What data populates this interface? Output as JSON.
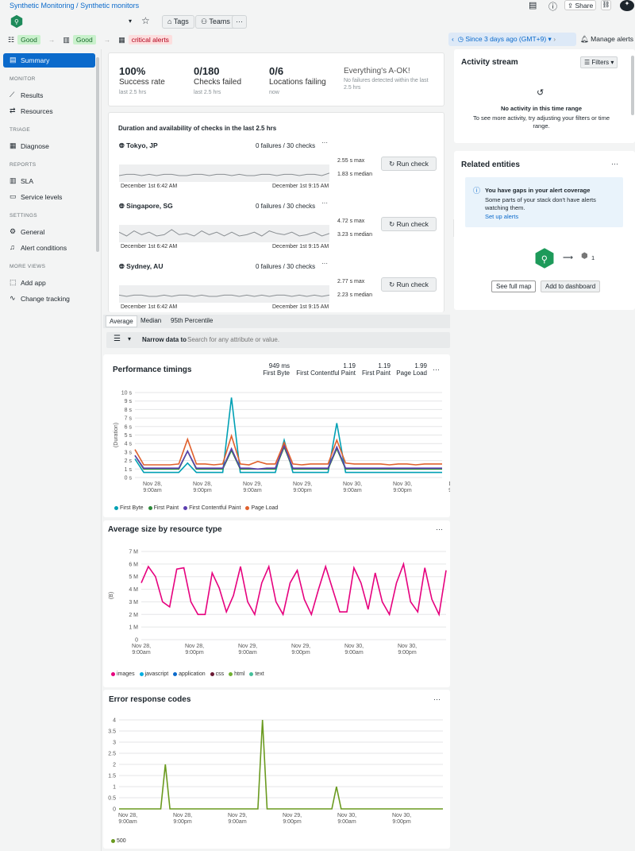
{
  "breadcrumb": {
    "parent": "Synthetic Monitoring",
    "sep": " / ",
    "current": "Synthetic monitors"
  },
  "header": {
    "tags_label": "Tags",
    "teams_label": "Teams",
    "more_label": "···",
    "share_label": "Share"
  },
  "status": {
    "s1": "Good",
    "s2": "Good",
    "s3": "critical alerts"
  },
  "timepicker": {
    "label": "Since 3 days ago (GMT+9)",
    "manage_label": "Manage alerts"
  },
  "sidebar": {
    "summary": "Summary",
    "h_monitor": "MONITOR",
    "results": "Results",
    "resources": "Resources",
    "h_triage": "TRIAGE",
    "diagnose": "Diagnose",
    "h_reports": "REPORTS",
    "sla": "SLA",
    "service_levels": "Service levels",
    "h_settings": "SETTINGS",
    "general": "General",
    "alert_conditions": "Alert conditions",
    "h_more": "MORE VIEWS",
    "add_app": "Add app",
    "change_tracking": "Change tracking"
  },
  "kpis": [
    {
      "value": "100%",
      "label": "Success rate",
      "sub": "last 2.5 hrs"
    },
    {
      "value": "0/180",
      "label": "Checks failed",
      "sub": "last 2.5 hrs"
    },
    {
      "value": "0/6",
      "label": "Locations failing",
      "sub": "now"
    },
    {
      "value": "",
      "label": "Everything's A-OK!",
      "sub": "No failures detected within the last 2.5 hrs"
    }
  ],
  "checks": {
    "title": "Duration and availability of checks in the last 2.5 hrs",
    "run_label": "Run check",
    "locations": [
      {
        "name": "Tokyo, JP",
        "failures": "0 failures / 30 checks",
        "max": "2.55 s max",
        "median": "1.83 s median",
        "from": "December 1st 6:42 AM",
        "to": "December 1st 9:15 AM"
      },
      {
        "name": "Singapore, SG",
        "failures": "0 failures / 30 checks",
        "max": "4.72 s max",
        "median": "3.23 s median",
        "from": "December 1st 6:42 AM",
        "to": "December 1st 9:15 AM"
      },
      {
        "name": "Sydney, AU",
        "failures": "0 failures / 30 checks",
        "max": "2.77 s max",
        "median": "2.23 s median",
        "from": "December 1st 6:42 AM",
        "to": "December 1st 9:15 AM"
      }
    ]
  },
  "tabs": [
    "Average",
    "Median",
    "95th Percentile"
  ],
  "filter": {
    "label": "Narrow data to",
    "placeholder": "Search for any attribute or value."
  },
  "activity": {
    "title": "Activity stream",
    "filters": "Filters",
    "empty_title": "No activity in this time range",
    "empty_sub": "To see more activity, try adjusting your filters or time range."
  },
  "related": {
    "title": "Related entities",
    "gap_title": "You have gaps in your alert coverage",
    "gap_body": "Some parts of your stack don't have alerts watching them.",
    "gap_link": "Set up alerts",
    "count": "1",
    "full_map": "See full map",
    "add_dash": "Add to dashboard"
  },
  "perf": {
    "title": "Performance timings",
    "m1v": "949 ms",
    "m1l": "First Byte",
    "m2v": "1.19",
    "m2l": "First Contentful Paint",
    "m3v": "1.19",
    "m3l": "First Paint",
    "m4v": "1.99",
    "m4l": "Page Load"
  },
  "size": {
    "title": "Average size by resource type"
  },
  "errors": {
    "title": "Error response codes"
  },
  "colors": {
    "blue": "#0b6acb",
    "green": "#1ce783",
    "accent": "#1d8a3a"
  },
  "chart_data": [
    {
      "type": "line",
      "title": "Performance timings",
      "ylabel": "(Duration)",
      "ylim": [
        0,
        10
      ],
      "yticks": [
        "0 s",
        "1 s",
        "2 s",
        "3 s",
        "4 s",
        "5 s",
        "6 s",
        "7 s",
        "8 s",
        "9 s",
        "10 s"
      ],
      "xticks": [
        "Nov 28,\n9:00am",
        "Nov 28,\n9:00pm",
        "Nov 29,\n9:00am",
        "Nov 29,\n9:00pm",
        "Nov 30,\n9:00am",
        "Nov 30,\n9:00pm",
        "De\n9:0"
      ],
      "series": [
        {
          "name": "First Byte",
          "color": "#00a0b4",
          "values": [
            2.2,
            0.6,
            0.6,
            0.6,
            0.6,
            0.6,
            1.7,
            0.6,
            0.6,
            0.6,
            0.6,
            9.4,
            0.6,
            0.6,
            0.6,
            0.6,
            0.6,
            4.4,
            0.6,
            0.6,
            0.6,
            0.6,
            0.6,
            6.4,
            0.6,
            0.6,
            0.6,
            0.6,
            0.6,
            0.6,
            0.6,
            0.6,
            0.6,
            0.6,
            0.6,
            0.6
          ]
        },
        {
          "name": "First Paint",
          "color": "#2c8a3a",
          "values": [
            2.6,
            1.0,
            1.0,
            1.0,
            1.0,
            1.0,
            3.1,
            1.0,
            1.0,
            1.0,
            1.0,
            3.2,
            1.0,
            1.0,
            1.0,
            1.0,
            1.0,
            3.6,
            1.0,
            1.0,
            1.0,
            1.0,
            1.0,
            3.4,
            1.0,
            1.0,
            1.0,
            1.0,
            1.0,
            1.0,
            1.0,
            1.0,
            1.0,
            1.0,
            1.0,
            1.0
          ]
        },
        {
          "name": "First Contentful Paint",
          "color": "#5c3fb0",
          "values": [
            2.6,
            1.1,
            1.1,
            1.1,
            1.1,
            1.1,
            3.1,
            1.1,
            1.1,
            1.1,
            1.1,
            3.4,
            1.1,
            1.1,
            1.0,
            1.1,
            1.1,
            3.8,
            1.1,
            1.1,
            1.1,
            1.1,
            1.1,
            3.6,
            1.1,
            1.1,
            1.1,
            1.1,
            1.1,
            1.1,
            1.1,
            1.1,
            1.1,
            1.1,
            1.1,
            1.1
          ]
        },
        {
          "name": "Page Load",
          "color": "#e0602d",
          "values": [
            3.3,
            1.5,
            1.5,
            1.5,
            1.5,
            1.6,
            4.5,
            1.6,
            1.6,
            1.5,
            1.6,
            4.9,
            1.6,
            1.5,
            1.9,
            1.6,
            1.6,
            4.1,
            1.6,
            1.5,
            1.6,
            1.6,
            1.6,
            4.4,
            1.7,
            1.6,
            1.6,
            1.6,
            1.6,
            1.5,
            1.6,
            1.6,
            1.5,
            1.6,
            1.6,
            1.6
          ]
        }
      ]
    },
    {
      "type": "area",
      "title": "Average size by resource type",
      "ylabel": "(B)",
      "ylim": [
        0,
        7
      ],
      "yticks": [
        "0",
        "1 M",
        "2 M",
        "3 M",
        "4 M",
        "5 M",
        "6 M",
        "7 M"
      ],
      "xticks": [
        "Nov 28,\n9:00am",
        "Nov 28,\n9:00pm",
        "Nov 29,\n9:00am",
        "Nov 29,\n9:00pm",
        "Nov 30,\n9:00am",
        "Nov 30,\n9:00pm"
      ],
      "series": [
        {
          "name": "images",
          "color": "#e6007e",
          "values": [
            4.5,
            5.8,
            5.0,
            3.0,
            2.6,
            5.6,
            5.7,
            3.0,
            2.0,
            2.0,
            5.3,
            4.1,
            2.2,
            3.5,
            5.8,
            3.0,
            2.0,
            4.5,
            5.8,
            3.0,
            2.0,
            4.5,
            5.5,
            3.2,
            2.0,
            4.0,
            5.8,
            4.0,
            2.2,
            2.2,
            5.7,
            4.5,
            2.4,
            5.3,
            3.0,
            2.0,
            4.5,
            6.0,
            3.0,
            2.2,
            5.7,
            3.2,
            2.0,
            5.5
          ]
        },
        {
          "name": "javascript",
          "color": "#00aee1",
          "values": []
        },
        {
          "name": "application",
          "color": "#0b6acb",
          "values": []
        },
        {
          "name": "css",
          "color": "#6b1a34",
          "values": []
        },
        {
          "name": "html",
          "color": "#70b032",
          "values": []
        },
        {
          "name": "text",
          "color": "#45c09a",
          "values": []
        }
      ]
    },
    {
      "type": "line",
      "title": "Error response codes",
      "ylim": [
        0,
        4
      ],
      "yticks": [
        "0",
        "0.5",
        "1",
        "1.5",
        "2",
        "2.5",
        "3",
        "3.5",
        "4"
      ],
      "xticks": [
        "Nov 28,\n9:00am",
        "Nov 28,\n9:00pm",
        "Nov 29,\n9:00am",
        "Nov 29,\n9:00pm",
        "Nov 30,\n9:00am",
        "Nov 30,\n9:00pm",
        "De\n9:0"
      ],
      "series": [
        {
          "name": "500",
          "color": "#6a9a1f",
          "values": [
            0,
            0,
            0,
            0,
            0,
            0,
            0,
            0,
            0,
            0,
            2,
            0,
            0,
            0,
            0,
            0,
            0,
            0,
            0,
            0,
            0,
            0,
            0,
            0,
            0,
            0,
            0,
            0,
            0,
            0,
            0,
            4,
            0,
            0,
            0,
            0,
            0,
            0,
            0,
            0,
            0,
            0,
            0,
            0,
            0,
            0,
            0,
            1,
            0,
            0,
            0,
            0,
            0,
            0,
            0,
            0,
            0,
            0,
            0,
            0,
            0,
            0,
            0,
            0,
            0,
            0,
            0,
            0,
            0,
            0,
            0
          ]
        }
      ]
    }
  ]
}
